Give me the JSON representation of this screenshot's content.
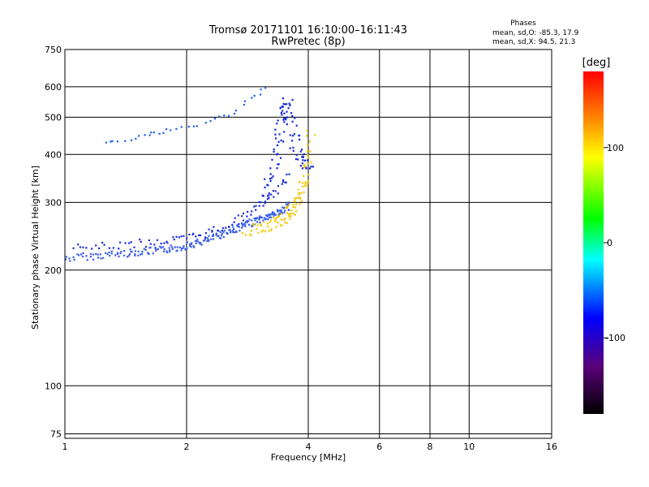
{
  "chart_data": {
    "type": "scatter",
    "title": "Tromsø 20171101 16:10:00–16:11:43",
    "subtitle": "RwPretec (8p)",
    "xlabel": "Frequency [MHz]",
    "ylabel": "Stationary phase Virtual Height [km]",
    "x_scale": "log",
    "y_scale": "log",
    "xlim": [
      1,
      16
    ],
    "ylim": [
      73,
      750
    ],
    "xticks": [
      1,
      2,
      4,
      6,
      8,
      10,
      16
    ],
    "yticks": [
      75,
      100,
      200,
      300,
      400,
      500,
      600,
      750
    ],
    "grid": true,
    "phase_info": {
      "heading": "Phases",
      "line1": "mean, sd,O:  -85.3, 17.9",
      "line2": "mean, sd,X:   94.5, 21.3"
    },
    "colorbar": {
      "label": "[deg]",
      "range": [
        -180,
        180
      ],
      "ticks": [
        100,
        0,
        -100
      ],
      "colormap": [
        "#000000",
        "#5a007a",
        "#0000ff",
        "#00ffff",
        "#00ff00",
        "#ffff00",
        "#ff8000",
        "#ff0000"
      ]
    },
    "o_trace_lower": {
      "name": "",
      "color": "#3a60e8",
      "x": [
        1.0,
        1.1,
        1.2,
        1.3,
        1.4,
        1.5,
        1.6,
        1.7,
        1.8,
        1.9,
        2.0,
        2.1,
        2.2,
        2.3,
        2.4,
        2.5,
        2.6,
        2.7,
        2.8,
        2.9,
        3.0,
        3.1,
        3.2,
        3.3,
        3.4,
        3.5,
        3.6
      ],
      "y": [
        215,
        218,
        219,
        221,
        222,
        224,
        225,
        226,
        228,
        230,
        233,
        236,
        239,
        243,
        248,
        252,
        256,
        260,
        264,
        268,
        272,
        275,
        278,
        282,
        286,
        290,
        296
      ]
    },
    "o_trace_upper": {
      "name": "",
      "color": "#1e2ee0",
      "x": [
        1.05,
        1.2,
        1.4,
        1.6,
        1.8,
        2.0,
        2.2,
        2.4,
        2.6,
        2.8,
        3.0,
        3.2,
        3.4,
        3.6
      ],
      "y": [
        230,
        231,
        234,
        237,
        240,
        243,
        250,
        258,
        268,
        280,
        295,
        310,
        330,
        360
      ]
    },
    "x_trace": {
      "name": "",
      "color": "#f5c800",
      "x": [
        2.8,
        3.0,
        3.2,
        3.4,
        3.5,
        3.6,
        3.7,
        3.8,
        3.9,
        4.0,
        4.05
      ],
      "y": [
        255,
        258,
        262,
        268,
        275,
        285,
        300,
        320,
        345,
        390,
        460
      ]
    },
    "o_cusp": {
      "name": "",
      "color": "#1428d8",
      "x": [
        3.1,
        3.2,
        3.3,
        3.35,
        3.4,
        3.45,
        3.5,
        3.55,
        3.6,
        3.7,
        3.8,
        3.9,
        4.0
      ],
      "y": [
        300,
        340,
        380,
        420,
        470,
        520,
        560,
        520,
        480,
        430,
        400,
        380,
        360
      ]
    },
    "o_upper_branch": {
      "name": "",
      "color": "#2060e8",
      "x": [
        1.25,
        1.35,
        1.5,
        1.6,
        1.7,
        1.8,
        2.0,
        2.2,
        2.4,
        2.6,
        2.8,
        3.0,
        3.2
      ],
      "y": [
        435,
        440,
        445,
        452,
        458,
        465,
        472,
        485,
        500,
        520,
        545,
        580,
        612
      ]
    }
  }
}
